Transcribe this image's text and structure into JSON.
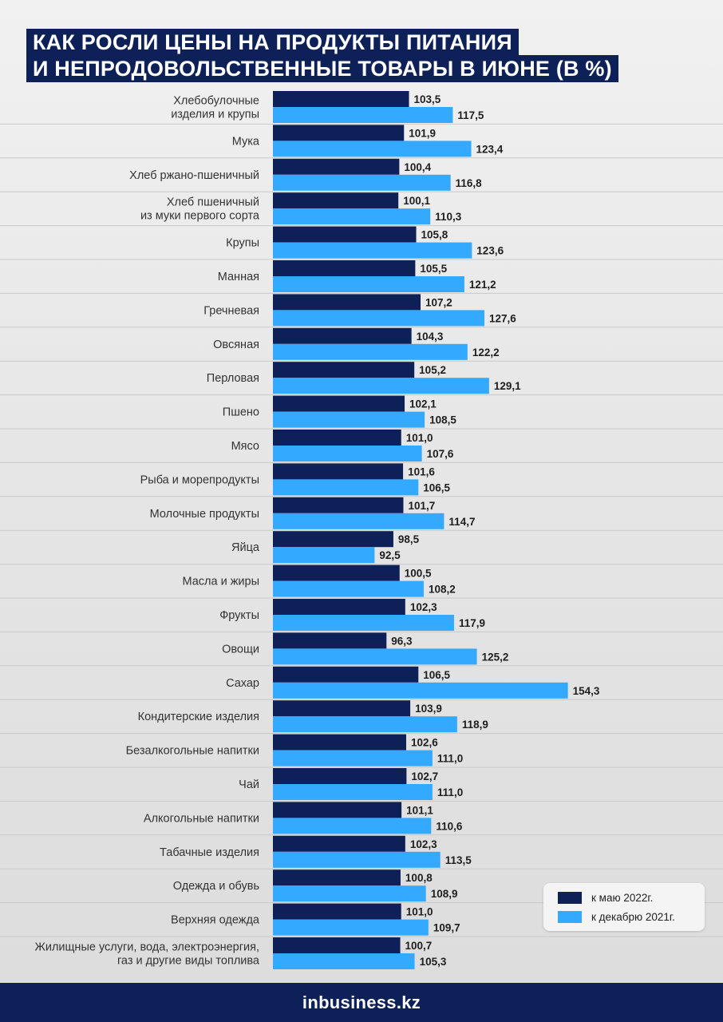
{
  "header": {
    "title_line1": "КАК РОСЛИ ЦЕНЫ НА ПРОДУКТЫ ПИТАНИЯ",
    "title_line2": "И НЕПРОДОВОЛЬСТВЕННЫЕ ТОВАРЫ В ИЮНЕ (В %)"
  },
  "footer": {
    "logo_prefix": "in",
    "logo_rest": "business.kz"
  },
  "colors": {
    "dark": "#0d2158",
    "light": "#33aaff"
  },
  "chart_data": {
    "type": "bar",
    "orientation": "horizontal",
    "title": "КАК РОСЛИ ЦЕНЫ НА ПРОДУКТЫ ПИТАНИЯ И НЕПРОДОВОЛЬСТВЕННЫЕ ТОВАРЫ В ИЮНЕ (В %)",
    "legend_position": "bottom-right",
    "categories": [
      [
        "Хлебобулочные",
        "изделия и крупы"
      ],
      [
        "Мука"
      ],
      [
        "Хлеб ржано-пшеничный"
      ],
      [
        "Хлеб пшеничный",
        "из муки первого сорта"
      ],
      [
        "Крупы"
      ],
      [
        "Манная"
      ],
      [
        "Гречневая"
      ],
      [
        "Овсяная"
      ],
      [
        "Перловая"
      ],
      [
        "Пшено"
      ],
      [
        "Мясо"
      ],
      [
        "Рыба и морепродукты"
      ],
      [
        "Молочные продукты"
      ],
      [
        "Яйца"
      ],
      [
        "Масла и жиры"
      ],
      [
        "Фрукты"
      ],
      [
        "Овощи"
      ],
      [
        "Сахар"
      ],
      [
        "Кондитерские изделия"
      ],
      [
        "Безалкогольные напитки"
      ],
      [
        "Чай"
      ],
      [
        "Алкогольные напитки"
      ],
      [
        "Табачные изделия"
      ],
      [
        "Одежда и обувь"
      ],
      [
        "Верхняя одежда"
      ],
      [
        "Жилищные услуги, вода, электроэнергия,",
        "газ и другие виды топлива"
      ]
    ],
    "series": [
      {
        "name": "к маю 2022г.",
        "color": "#0d2158",
        "values": [
          103.5,
          101.9,
          100.4,
          100.1,
          105.8,
          105.5,
          107.2,
          104.3,
          105.2,
          102.1,
          101.0,
          101.6,
          101.7,
          98.5,
          100.5,
          102.3,
          96.3,
          106.5,
          103.9,
          102.6,
          102.7,
          101.1,
          102.3,
          100.8,
          101.0,
          100.7
        ],
        "labels": [
          "103,5",
          "101,9",
          "100,4",
          "100,1",
          "105,8",
          "105,5",
          "107,2",
          "104,3",
          "105,2",
          "102,1",
          "101,0",
          "101,6",
          "101,7",
          "98,5",
          "100,5",
          "102,3",
          "96,3",
          "106,5",
          "103,9",
          "102,6",
          "102,7",
          "101,1",
          "102,3",
          "100,8",
          "101,0",
          "100,7"
        ]
      },
      {
        "name": "к декабрю 2021г.",
        "color": "#33aaff",
        "values": [
          117.5,
          123.4,
          116.8,
          110.3,
          123.6,
          121.2,
          127.6,
          122.2,
          129.1,
          108.5,
          107.6,
          106.5,
          114.7,
          92.5,
          108.2,
          117.9,
          125.2,
          154.3,
          118.9,
          111.0,
          111.0,
          110.6,
          113.5,
          108.9,
          109.7,
          105.3
        ],
        "labels": [
          "117,5",
          "123,4",
          "116,8",
          "110,3",
          "123,6",
          "121,2",
          "127,6",
          "122,2",
          "129,1",
          "108,5",
          "107,6",
          "106,5",
          "114,7",
          "92,5",
          "108,2",
          "117,9",
          "125,2",
          "154,3",
          "118,9",
          "111,0",
          "111,0",
          "110,6",
          "113,5",
          "108,9",
          "109,7",
          "105,3"
        ]
      }
    ]
  }
}
